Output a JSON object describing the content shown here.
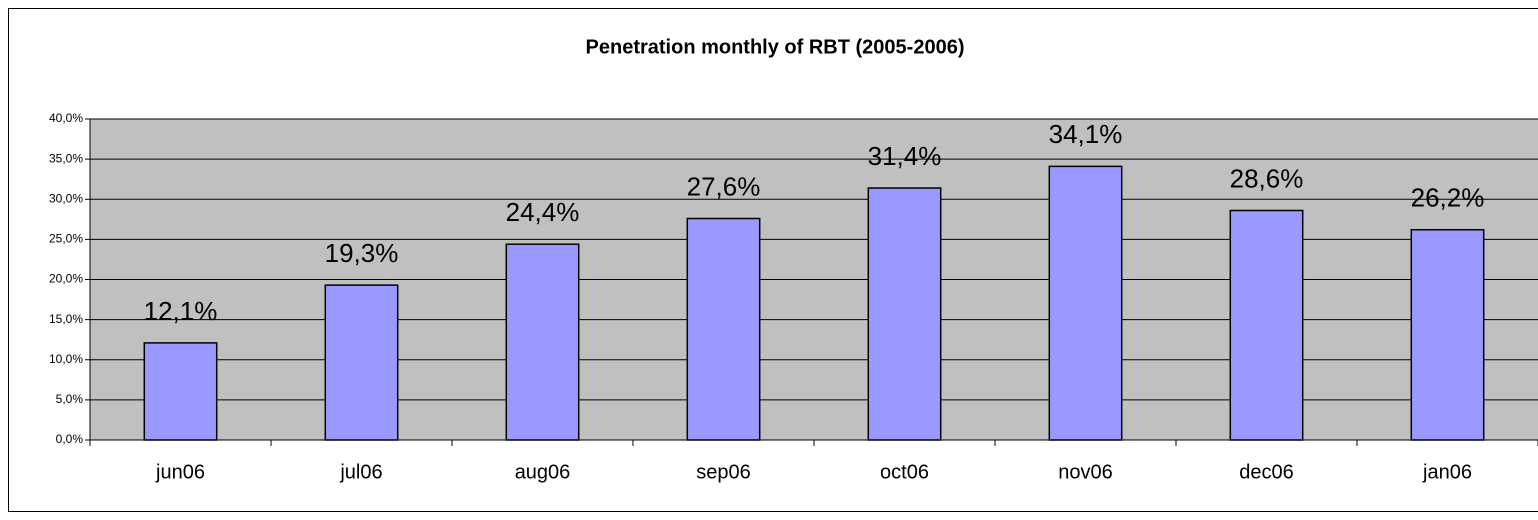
{
  "chart_data": {
    "type": "bar",
    "title": "Penetration monthly of RBT (2005-2006)",
    "categories": [
      "jun06",
      "jul06",
      "aug06",
      "sep06",
      "oct06",
      "nov06",
      "dec06",
      "jan06"
    ],
    "values": [
      12.1,
      19.3,
      24.4,
      27.6,
      31.4,
      34.1,
      28.6,
      26.2
    ],
    "value_labels": [
      "12,1%",
      "19,3%",
      "24,4%",
      "27,6%",
      "31,4%",
      "34,1%",
      "28,6%",
      "26,2%"
    ],
    "color": "#9999ff",
    "ylim": [
      0,
      40
    ],
    "yticks": [
      {
        "value": 0,
        "label": "0,0%"
      },
      {
        "value": 5,
        "label": "5,0%"
      },
      {
        "value": 10,
        "label": "10,0%"
      },
      {
        "value": 15,
        "label": "15,0%"
      },
      {
        "value": 20,
        "label": "20,0%"
      },
      {
        "value": 25,
        "label": "25,0%"
      },
      {
        "value": 30,
        "label": "30,0%"
      },
      {
        "value": 35,
        "label": "35,0%"
      },
      {
        "value": 40,
        "label": "40,0%"
      }
    ],
    "grid": true
  }
}
